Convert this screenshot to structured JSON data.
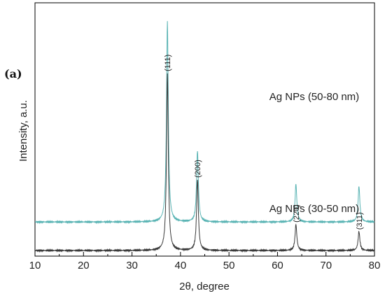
{
  "chart_data": {
    "type": "line",
    "panel_label": "(a)",
    "xlabel": "2θ, degree",
    "ylabel": "Intensity, a.u.",
    "xlim": [
      10,
      80
    ],
    "x_ticks": [
      10,
      20,
      30,
      40,
      50,
      60,
      70,
      80
    ],
    "y_tick_labels": "none",
    "grid": false,
    "series": [
      {
        "name": "Ag NPs (50-80 nm)",
        "color": "#5ab4b4",
        "baseline": 0.12,
        "peaks": [
          {
            "x": 37.3,
            "height": 0.84
          },
          {
            "x": 43.5,
            "height": 0.3
          },
          {
            "x": 63.8,
            "height": 0.16
          },
          {
            "x": 76.8,
            "height": 0.15
          }
        ]
      },
      {
        "name": "Ag NPs (30-50 nm)",
        "color": "#3a3a3a",
        "baseline": 0.0,
        "peaks": [
          {
            "x": 37.3,
            "height": 0.74,
            "label": "(111)"
          },
          {
            "x": 43.5,
            "height": 0.3,
            "label": "(200)"
          },
          {
            "x": 63.8,
            "height": 0.11,
            "label": "(220)"
          },
          {
            "x": 76.8,
            "height": 0.08,
            "label": "(311)"
          }
        ]
      }
    ]
  }
}
